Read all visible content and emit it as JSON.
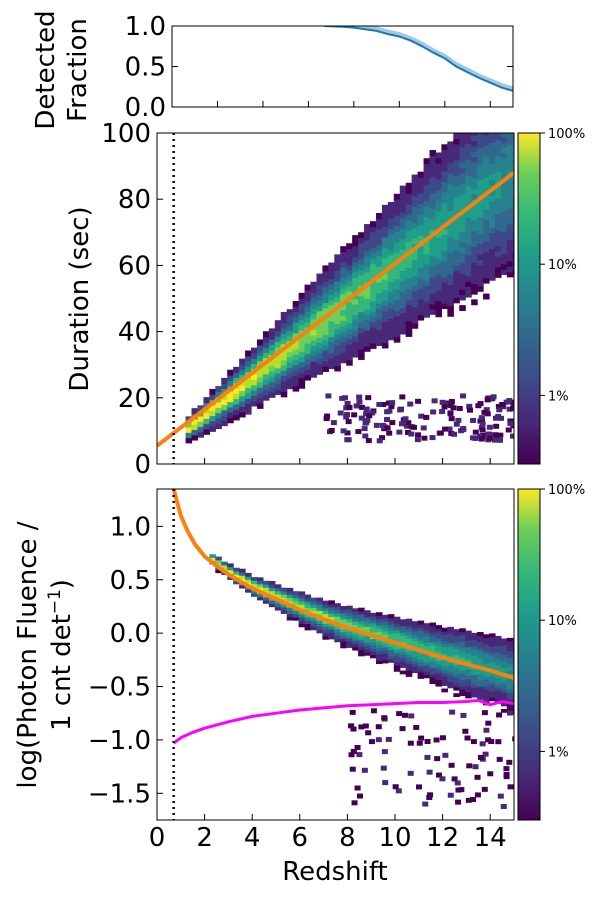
{
  "chart_data": [
    {
      "type": "line",
      "panel": "top",
      "ylabel_lines": [
        "Detected",
        "Fraction"
      ],
      "xlim": [
        0,
        15
      ],
      "ylim": [
        0,
        1
      ],
      "yticks": [
        "0.0",
        "0.5",
        "1.0"
      ],
      "ytick_values": [
        0,
        0.5,
        1
      ],
      "series": [
        {
          "name": "detected fraction",
          "color": "#1f77b4",
          "x": [
            6.7,
            7.5,
            8.0,
            8.5,
            9.0,
            9.5,
            10.0,
            10.5,
            11.0,
            11.5,
            12.0,
            12.5,
            13.0,
            13.5,
            14.0,
            14.5,
            15.0
          ],
          "y": [
            1.0,
            0.99,
            0.98,
            0.96,
            0.94,
            0.9,
            0.87,
            0.82,
            0.75,
            0.67,
            0.6,
            0.5,
            0.43,
            0.36,
            0.3,
            0.24,
            0.2
          ]
        }
      ]
    },
    {
      "type": "heatmap",
      "panel": "middle",
      "ylabel": "Duration (sec)",
      "xlim": [
        0,
        15
      ],
      "ylim": [
        0,
        100
      ],
      "yticks": [
        "0",
        "20",
        "40",
        "60",
        "80",
        "100"
      ],
      "ytick_values": [
        0,
        20,
        40,
        60,
        80,
        100
      ],
      "colorbar_ticks": [
        "100%",
        "10%",
        "1%"
      ],
      "colorbar_values": [
        100,
        10,
        1
      ],
      "fit_line": {
        "color": "#ff7f0e",
        "x": [
          0,
          15
        ],
        "y": [
          5.5,
          88
        ]
      },
      "threshold_line": {
        "style": "dotted",
        "x": 0.7
      },
      "density_ridge": {
        "x": [
          1.2,
          15
        ],
        "y_center": [
          10,
          88
        ],
        "y_spread": [
          1.5,
          14
        ]
      }
    },
    {
      "type": "heatmap",
      "panel": "bottom",
      "ylabel_lines": [
        "log(Photon Fluence /",
        "1 cnt det"
      ],
      "ylabel_superscript": "−1",
      "ylabel_suffix": ")",
      "xlabel": "Redshift",
      "xlim": [
        0,
        15
      ],
      "ylim": [
        -1.75,
        1.35
      ],
      "xticks": [
        "0",
        "2",
        "4",
        "6",
        "8",
        "10",
        "12",
        "14"
      ],
      "xtick_values": [
        0,
        2,
        4,
        6,
        8,
        10,
        12,
        14
      ],
      "yticks": [
        "−1.5",
        "−1.0",
        "−0.5",
        "0.0",
        "0.5",
        "1.0"
      ],
      "ytick_values": [
        -1.5,
        -1.0,
        -0.5,
        0.0,
        0.5,
        1.0
      ],
      "colorbar_ticks": [
        "100%",
        "10%",
        "1%"
      ],
      "colorbar_values": [
        100,
        10,
        1
      ],
      "fit_curve": {
        "color": "#ff7f0e",
        "x": [
          0.7,
          1.0,
          1.3,
          1.6,
          2.0,
          2.5,
          3.0,
          4.0,
          5.0,
          6.0,
          7.0,
          8.0,
          9.0,
          10.0,
          11.0,
          12.0,
          13.0,
          14.0,
          15.0
        ],
        "y": [
          1.35,
          1.1,
          0.95,
          0.83,
          0.72,
          0.63,
          0.55,
          0.42,
          0.32,
          0.22,
          0.13,
          0.05,
          -0.02,
          -0.09,
          -0.16,
          -0.23,
          -0.29,
          -0.35,
          -0.42
        ]
      },
      "limit_curve": {
        "color": "#ff00ff",
        "x": [
          0.7,
          1.0,
          1.5,
          2.0,
          3.0,
          4.0,
          5.0,
          6.0,
          7.0,
          8.0,
          9.0,
          10.0,
          11.0,
          12.0,
          13.0,
          13.5,
          14.0,
          14.5,
          15.0
        ],
        "y": [
          -1.03,
          -0.98,
          -0.93,
          -0.89,
          -0.83,
          -0.78,
          -0.75,
          -0.72,
          -0.7,
          -0.68,
          -0.67,
          -0.66,
          -0.65,
          -0.65,
          -0.64,
          -0.63,
          -0.67,
          -0.64,
          -0.66
        ]
      },
      "threshold_line": {
        "style": "dotted",
        "x": 0.7
      }
    }
  ]
}
